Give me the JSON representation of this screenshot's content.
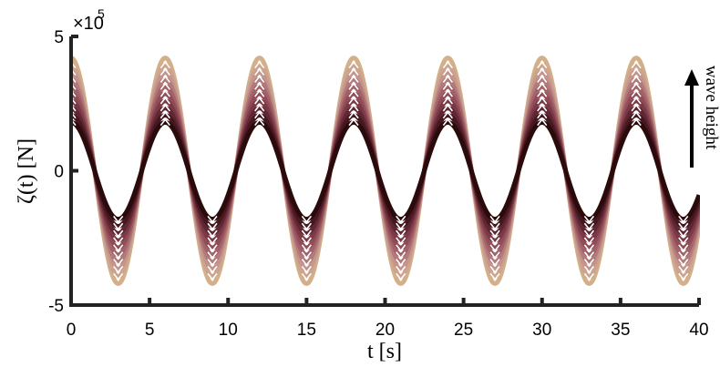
{
  "chart_data": {
    "type": "line",
    "title": "",
    "xlabel": "t [s]",
    "ylabel": "ζ(t) [N]",
    "xlim": [
      0,
      40
    ],
    "ylim": [
      -5,
      5
    ],
    "x_ticks": [
      "0",
      "5",
      "10",
      "15",
      "20",
      "25",
      "30",
      "35",
      "40"
    ],
    "y_ticks": [
      "-5",
      "0",
      "5"
    ],
    "y_exponent_base": "×10",
    "y_exponent_power": "5",
    "grid": false,
    "period_s": 6,
    "series_count": 10,
    "amplitude_range_x1e5": [
      1.8,
      4.2
    ],
    "waveform": "cosine",
    "annotation": "wave height",
    "annotation_arrow_direction": "up",
    "colormap": [
      "#2a0a0a",
      "#5a2230",
      "#8a4450",
      "#a86a70",
      "#c89a90",
      "#d4b08a"
    ]
  }
}
